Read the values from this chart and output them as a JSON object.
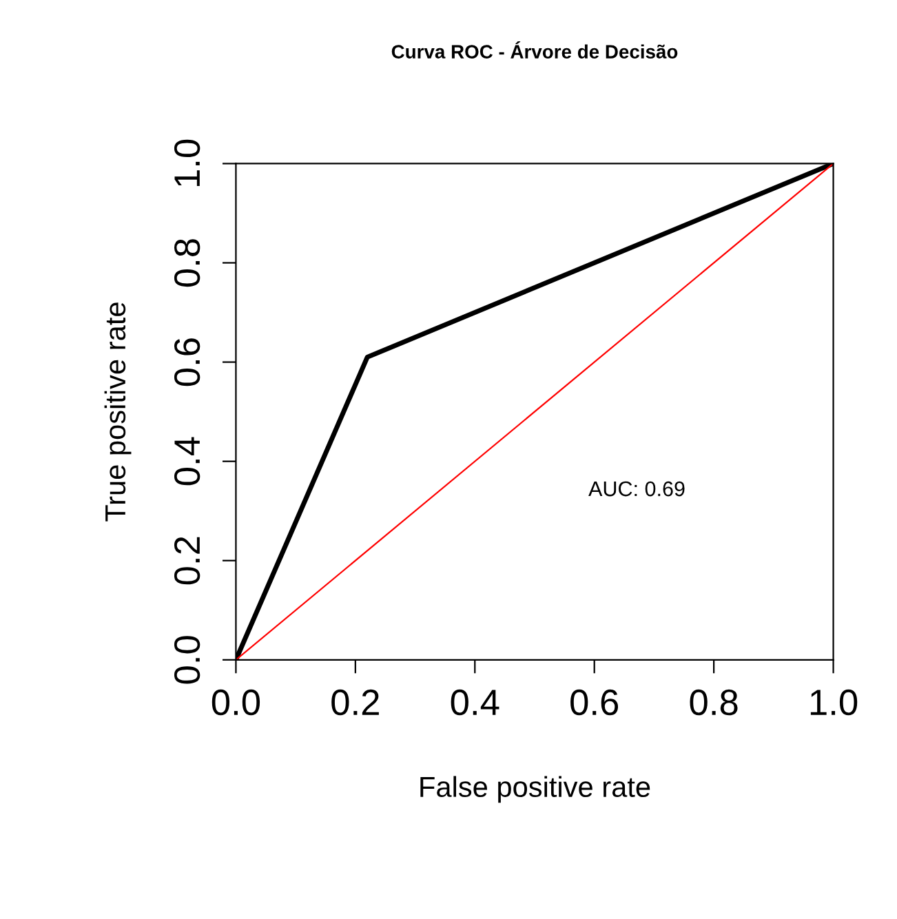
{
  "chart_data": {
    "type": "line",
    "title": "Curva ROC - Árvore de Decisão",
    "xlabel": "False positive rate",
    "ylabel": "True positive rate",
    "series": [
      {
        "x": [
          0,
          0.22,
          1
        ],
        "values": [
          0,
          0.61,
          1
        ],
        "color": "#000000"
      },
      {
        "x": [
          0,
          1
        ],
        "values": [
          0,
          1
        ],
        "color": "#ff0000"
      }
    ],
    "xlim": [
      0,
      1
    ],
    "ylim": [
      0,
      1
    ],
    "xticks": [
      {
        "value": 0,
        "label": "0.0"
      },
      {
        "value": 0.2,
        "label": "0.2"
      },
      {
        "value": 0.4,
        "label": "0.4"
      },
      {
        "value": 0.6,
        "label": "0.6"
      },
      {
        "value": 0.8,
        "label": "0.8"
      },
      {
        "value": 1,
        "label": "1.0"
      }
    ],
    "yticks": [
      {
        "value": 0,
        "label": "0.0"
      },
      {
        "value": 0.2,
        "label": "0.2"
      },
      {
        "value": 0.4,
        "label": "0.4"
      },
      {
        "value": 0.6,
        "label": "0.6"
      },
      {
        "value": 0.8,
        "label": "0.8"
      },
      {
        "value": 1,
        "label": "1.0"
      }
    ],
    "annotations": [
      "AUC: 0.69"
    ],
    "grid": false,
    "legend": false
  }
}
